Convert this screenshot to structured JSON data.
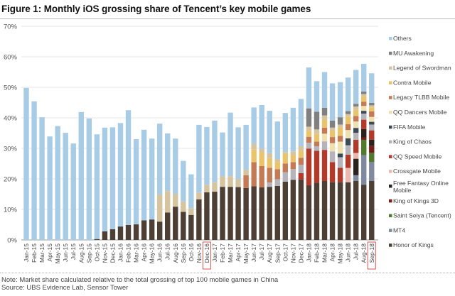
{
  "chart_data": {
    "type": "bar",
    "stacked": true,
    "title": "Figure 1: Monthly iOS grossing share of Tencent’s key mobile games",
    "xlabel": "",
    "ylabel": "",
    "ylim": [
      0,
      70
    ],
    "yticks": [
      "0%",
      "10%",
      "20%",
      "30%",
      "40%",
      "50%",
      "60%",
      "70%"
    ],
    "grid": true,
    "legend_position": "right",
    "highlighted_categories": [
      "Dec-16",
      "Sep-18"
    ],
    "highlight_color": "#d9534f",
    "categories": [
      "Jan-15",
      "Feb-15",
      "Mar-15",
      "Apr-15",
      "May-15",
      "Jun-15",
      "Jul-15",
      "Aug-15",
      "Sep-15",
      "Oct-15",
      "Nov-15",
      "Dec-15",
      "Jan-16",
      "Feb-16",
      "Mar-16",
      "Apr-16",
      "May-16",
      "Jun-16",
      "Jul-16",
      "Aug-16",
      "Sep-16",
      "Oct-16",
      "Nov-16",
      "Dec-16",
      "Jan-17",
      "Feb-17",
      "Mar-17",
      "Apr-17",
      "May-17",
      "Jun-17",
      "Jul-17",
      "Aug-17",
      "Sep-17",
      "Oct-17",
      "Nov-17",
      "Dec-17",
      "Jan-18",
      "Feb-18",
      "Mar-18",
      "Apr-18",
      "May-18",
      "Jun-18",
      "Jul-18",
      "Aug-18",
      "Sep-18"
    ],
    "series": [
      {
        "name": "Honor of Kings",
        "color": "#4d3f33",
        "values": [
          0,
          0,
          0,
          0,
          0,
          0,
          0,
          0,
          0,
          0.3,
          2.8,
          3.5,
          4.4,
          4.9,
          5.1,
          6.4,
          6.7,
          6.0,
          9.0,
          10.9,
          9.2,
          8.2,
          13.3,
          15.6,
          15.8,
          17.4,
          17.4,
          17.3,
          17.0,
          17.6,
          17.2,
          17.4,
          17.7,
          19.1,
          19.7,
          19.8,
          17.9,
          18.7,
          19.3,
          18.9,
          18.9,
          18.9,
          19.3,
          18.1,
          19.3
        ]
      },
      {
        "name": "MT4",
        "color": "#7f8aa0",
        "values": [
          0,
          0,
          0,
          0,
          0,
          0,
          0,
          0,
          0,
          0,
          0,
          0,
          0,
          0,
          0,
          0,
          0,
          0,
          0,
          0,
          0,
          0,
          0,
          0,
          0,
          0,
          0,
          0,
          0,
          0,
          0,
          0,
          0,
          0,
          0,
          0,
          0,
          0,
          0,
          0,
          0,
          0,
          1.9,
          9.7,
          6.2
        ]
      },
      {
        "name": "Saint Seiya (Tencent)",
        "color": "#52792e",
        "values": [
          0,
          0,
          0,
          0,
          0,
          0,
          0,
          0,
          0,
          0,
          0,
          0,
          0,
          0,
          0,
          0,
          0,
          0,
          0,
          0,
          0,
          0,
          0,
          0,
          0,
          0,
          0,
          0,
          0,
          0,
          0,
          0,
          0,
          0,
          0,
          0,
          0,
          0,
          0,
          0,
          0,
          0,
          0,
          5.0,
          3.1
        ]
      },
      {
        "name": "King of Kings 3D",
        "color": "#7a1e1a",
        "values": [
          0,
          0,
          0,
          0,
          0,
          0,
          0,
          0,
          0,
          0,
          0,
          0,
          0,
          0,
          0,
          0,
          0,
          0,
          0,
          0,
          0,
          0,
          0,
          0,
          0,
          0,
          0,
          0,
          0,
          0,
          0,
          0,
          0,
          0,
          0,
          0,
          0,
          0,
          0,
          0,
          0,
          0,
          0,
          0.8,
          2.3
        ]
      },
      {
        "name": "Free Fantasy Online Mobile",
        "color": "#2b231d",
        "values": [
          0,
          0,
          0,
          0,
          0,
          0,
          0,
          0,
          0,
          0,
          0,
          0,
          0,
          0,
          0,
          0,
          0,
          0,
          0,
          0,
          0,
          0,
          0,
          0,
          0,
          0,
          0,
          0,
          0,
          0,
          0,
          0,
          0,
          0,
          0,
          0,
          0,
          0,
          0,
          0,
          0,
          0,
          5.4,
          2.7,
          1.9
        ]
      },
      {
        "name": "Crossgate Mobile",
        "color": "#ebb8b0",
        "values": [
          0,
          0,
          0,
          0,
          0,
          0,
          0,
          0,
          0,
          0,
          0,
          0,
          0,
          0,
          0,
          0,
          0,
          0,
          0,
          0,
          0,
          0,
          0,
          0,
          0,
          0,
          0,
          0,
          0,
          0,
          0,
          0,
          0,
          0,
          0,
          0,
          0,
          0,
          0,
          0,
          0,
          4.7,
          1.9,
          0,
          0
        ]
      },
      {
        "name": "QQ Speed Mobile",
        "color": "#b23a2a",
        "values": [
          0,
          0,
          0,
          0,
          0,
          0,
          0,
          0,
          0,
          0,
          0,
          0,
          0,
          0,
          0,
          0,
          0,
          0,
          0,
          0,
          0,
          0,
          0,
          0,
          0,
          0,
          0,
          0,
          0,
          0,
          0,
          0,
          0,
          0,
          0,
          2.1,
          12.0,
          10.5,
          10.2,
          6.6,
          4.7,
          4.3,
          4.3,
          3.1,
          3.1
        ]
      },
      {
        "name": "King of Chaos",
        "color": "#b4b4ba",
        "values": [
          0,
          0,
          0,
          0,
          0,
          0,
          0,
          0,
          0,
          0,
          0,
          0,
          0,
          0,
          0,
          0,
          0,
          0,
          0,
          0,
          0,
          0,
          0,
          0,
          0,
          0,
          0,
          0,
          0,
          0,
          0,
          1.4,
          2.2,
          3.1,
          3.5,
          2.7,
          1.9,
          1.5,
          2.8,
          3.5,
          3.5,
          3.1,
          2.3,
          2.0,
          1.9
        ]
      },
      {
        "name": "FIFA Mobile",
        "color": "#3c4a55",
        "values": [
          0,
          0,
          0,
          0,
          0,
          0,
          0,
          0,
          0,
          0,
          0,
          0,
          0,
          0,
          0,
          0,
          0,
          0,
          0,
          0,
          0,
          0,
          0,
          0,
          0,
          0,
          0,
          0,
          0,
          0,
          0,
          0,
          0,
          0,
          0,
          0,
          0,
          0,
          0,
          0,
          1.2,
          2.3,
          1.6,
          0.9,
          0.9
        ]
      },
      {
        "name": "QQ Dancers Mobile",
        "color": "#efe0b0",
        "values": [
          0,
          0,
          0,
          0,
          0,
          0,
          0,
          0,
          0,
          0,
          0,
          0,
          0,
          0,
          0,
          0,
          0,
          0,
          0,
          0,
          0,
          0,
          0,
          0,
          0,
          0,
          0,
          0,
          0,
          0,
          0,
          0,
          0,
          0,
          0,
          0,
          0,
          0,
          2.5,
          2.7,
          3.9,
          2.7,
          2.1,
          1.6,
          1.6
        ]
      },
      {
        "name": "Legacy TLBB Mobile",
        "color": "#c47b55",
        "values": [
          0,
          0,
          0,
          0,
          0,
          0,
          0,
          0,
          0,
          0,
          0,
          0,
          0,
          0,
          0,
          0,
          0,
          0,
          0,
          0,
          0,
          0,
          0,
          0,
          0,
          0,
          0,
          0,
          4.2,
          7.9,
          7.0,
          4.8,
          3.3,
          2.8,
          2.3,
          2.3,
          2.0,
          1.5,
          2.0,
          2.0,
          1.9,
          1.9,
          1.8,
          1.4,
          1.8
        ]
      },
      {
        "name": "Contra Mobile",
        "color": "#eac46b",
        "values": [
          0,
          0,
          0,
          0,
          0,
          0,
          0,
          0,
          0,
          0,
          0,
          0,
          0,
          0,
          0,
          0,
          0,
          0,
          0,
          0,
          0,
          0,
          0,
          0,
          0,
          0,
          0,
          0,
          0,
          4.2,
          4.4,
          3.2,
          2.3,
          3.4,
          2.3,
          2.3,
          2.0,
          2.5,
          2.5,
          2.1,
          2.7,
          2.5,
          2.1,
          1.7,
          1.3
        ]
      },
      {
        "name": "Legend of Swordman",
        "color": "#d6c49e",
        "values": [
          0,
          0,
          0,
          0,
          0,
          0,
          0,
          0,
          0,
          0,
          0,
          0,
          0,
          0,
          0,
          0,
          0,
          8.9,
          7.0,
          4.1,
          3.4,
          2.2,
          2.2,
          2.5,
          3.1,
          3.4,
          3.5,
          2.6,
          1.8,
          1.8,
          1.3,
          1.6,
          1.0,
          0.4,
          1.2,
          1.5,
          1.3,
          1.5,
          1.5,
          1.0,
          1.0,
          0.8,
          1.0,
          0.8,
          0.7
        ]
      },
      {
        "name": "MU Awakening",
        "color": "#808080",
        "values": [
          0,
          0,
          0,
          0,
          0,
          0,
          0,
          0,
          0,
          0,
          0,
          0,
          0,
          0,
          0,
          0,
          0,
          0,
          0,
          0,
          0,
          0,
          0,
          0,
          0,
          0,
          0,
          0,
          0,
          0,
          0,
          0,
          0,
          0,
          0,
          0,
          6.0,
          5.8,
          2.5,
          2.3,
          2.4,
          1.0,
          0.9,
          0.8,
          0.8
        ]
      },
      {
        "name": "Others",
        "color": "#a9cce6",
        "values": [
          49.8,
          45.4,
          40.2,
          33.9,
          37.3,
          35.1,
          31.6,
          41.9,
          39.8,
          34.3,
          34.0,
          33.4,
          33.9,
          37.6,
          27.9,
          29.7,
          26.5,
          23.2,
          18.9,
          18.2,
          13.3,
          11.1,
          22.2,
          18.9,
          20.2,
          14.4,
          20.8,
          17.0,
          14.7,
          11.9,
          14.3,
          13.9,
          12.3,
          12.8,
          14.3,
          15.5,
          13.4,
          10.0,
          11.7,
          12.2,
          11.5,
          11.0,
          11.1,
          9.1,
          9.7
        ]
      }
    ],
    "legend_order": [
      "Others",
      "MU Awakening",
      "Legend of Swordman",
      "Contra Mobile",
      "Legacy TLBB Mobile",
      "QQ Dancers Mobile",
      "FIFA Mobile",
      "King of Chaos",
      "QQ Speed Mobile",
      "Crossgate Mobile",
      "Free Fantasy Online Mobile",
      "King of Kings 3D",
      "Saint Seiya (Tencent)",
      "MT4",
      "Honor of Kings"
    ]
  },
  "footer": {
    "note": "Note: Market share calculated relative to the total grossing of top 100 mobile games in China",
    "source": "Source:  UBS Evidence Lab, Sensor Tower"
  }
}
